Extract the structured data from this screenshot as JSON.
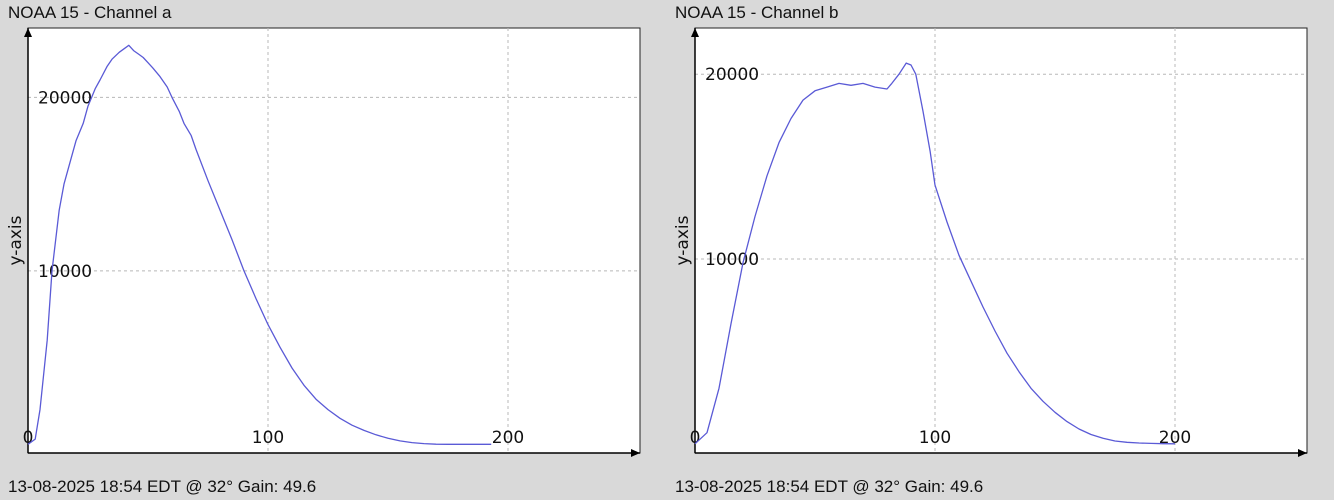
{
  "colors": {
    "series": "#5a5ad6",
    "grid": "#b8b8b8",
    "background": "#ffffff"
  },
  "chart_data": [
    {
      "type": "line",
      "title": "NOAA 15 - Channel a",
      "footer": "13-08-2025 18:54 EDT @ 32° Gain: 49.6",
      "ylabel": "y-axis",
      "xlim": [
        0,
        255
      ],
      "ylim": [
        -500,
        24000
      ],
      "xticks": [
        0,
        100,
        200
      ],
      "xtick_labels": [
        "0",
        "100",
        "200"
      ],
      "yticks": [
        10000,
        20000
      ],
      "ytick_labels": [
        "10000",
        "20000"
      ],
      "grid": true,
      "series": [
        {
          "x": [
            0,
            3,
            5,
            8,
            10,
            13,
            15,
            18,
            20,
            23,
            25,
            28,
            30,
            33,
            35,
            38,
            40,
            42,
            44,
            46,
            48,
            50,
            52,
            55,
            58,
            60,
            63,
            65,
            68,
            70,
            75,
            80,
            85,
            90,
            95,
            100,
            105,
            110,
            115,
            120,
            125,
            130,
            135,
            140,
            145,
            150,
            155,
            160,
            165,
            170,
            175,
            180,
            185,
            190,
            193
          ],
          "y": [
            0,
            300,
            2000,
            6000,
            10000,
            13500,
            15000,
            16500,
            17500,
            18500,
            19500,
            20500,
            21000,
            21800,
            22200,
            22600,
            22800,
            23000,
            22700,
            22500,
            22300,
            22000,
            21700,
            21200,
            20600,
            20000,
            19200,
            18500,
            17800,
            17000,
            15200,
            13500,
            11800,
            10000,
            8400,
            6900,
            5600,
            4400,
            3400,
            2600,
            2000,
            1500,
            1100,
            800,
            550,
            350,
            200,
            100,
            40,
            10,
            0,
            0,
            0,
            0,
            0
          ]
        }
      ]
    },
    {
      "type": "line",
      "title": "NOAA 15 - Channel b",
      "footer": "13-08-2025 18:54 EDT @ 32° Gain: 49.6",
      "ylabel": "y-axis",
      "xlim": [
        0,
        255
      ],
      "ylim": [
        -500,
        22500
      ],
      "xticks": [
        0,
        100,
        200
      ],
      "xtick_labels": [
        "0",
        "100",
        "200"
      ],
      "yticks": [
        10000,
        20000
      ],
      "ytick_labels": [
        "10000",
        "20000"
      ],
      "grid": true,
      "series": [
        {
          "x": [
            0,
            5,
            10,
            15,
            20,
            25,
            30,
            35,
            40,
            45,
            50,
            55,
            60,
            65,
            70,
            75,
            80,
            82,
            85,
            88,
            90,
            92,
            95,
            98,
            100,
            105,
            110,
            115,
            120,
            125,
            130,
            135,
            140,
            145,
            150,
            155,
            160,
            165,
            170,
            175,
            180,
            185,
            190,
            195,
            200
          ],
          "y": [
            0,
            600,
            3000,
            6500,
            9800,
            12300,
            14500,
            16300,
            17600,
            18600,
            19100,
            19300,
            19500,
            19400,
            19500,
            19300,
            19200,
            19500,
            20000,
            20600,
            20500,
            20000,
            18000,
            15800,
            14000,
            12000,
            10200,
            8800,
            7400,
            6100,
            4900,
            3900,
            3000,
            2300,
            1700,
            1200,
            800,
            500,
            300,
            150,
            80,
            40,
            20,
            5,
            0
          ]
        }
      ]
    }
  ]
}
